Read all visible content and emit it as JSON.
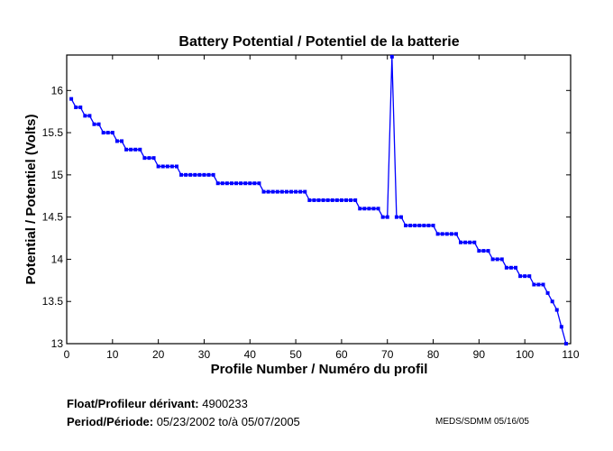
{
  "chart_data": {
    "type": "line",
    "title": "Battery Potential / Potentiel de la batterie",
    "xlabel": "Profile Number / Numéro du profil",
    "ylabel": "Potential / Potentiel (Volts)",
    "xlim": [
      0,
      110
    ],
    "ylim": [
      13,
      16.42
    ],
    "xticks": [
      0,
      10,
      20,
      30,
      40,
      50,
      60,
      70,
      80,
      90,
      100,
      110
    ],
    "yticks": [
      13,
      13.5,
      14,
      14.5,
      15,
      15.5,
      16
    ],
    "xtick_labels": [
      "0",
      "10",
      "20",
      "30",
      "40",
      "50",
      "60",
      "70",
      "80",
      "90",
      "100",
      "110"
    ],
    "ytick_labels": [
      "13",
      "13.5",
      "14",
      "14.5",
      "15",
      "15.5",
      "16"
    ],
    "grid": false,
    "color": "#0000ff",
    "series": [
      {
        "name": "Battery Potential",
        "x": [
          1,
          2,
          3,
          4,
          5,
          6,
          7,
          8,
          9,
          10,
          11,
          12,
          13,
          14,
          15,
          16,
          17,
          18,
          19,
          20,
          21,
          22,
          23,
          24,
          25,
          26,
          27,
          28,
          29,
          30,
          31,
          32,
          33,
          34,
          35,
          36,
          37,
          38,
          39,
          40,
          41,
          42,
          43,
          44,
          45,
          46,
          47,
          48,
          49,
          50,
          51,
          52,
          53,
          54,
          55,
          56,
          57,
          58,
          59,
          60,
          61,
          62,
          63,
          64,
          65,
          66,
          67,
          68,
          69,
          70,
          71,
          72,
          73,
          74,
          75,
          76,
          77,
          78,
          79,
          80,
          81,
          82,
          83,
          84,
          85,
          86,
          87,
          88,
          89,
          90,
          91,
          92,
          93,
          94,
          95,
          96,
          97,
          98,
          99,
          100,
          101,
          102,
          103,
          104,
          105,
          106,
          107,
          108,
          109
        ],
        "values": [
          15.9,
          15.8,
          15.8,
          15.7,
          15.7,
          15.6,
          15.6,
          15.5,
          15.5,
          15.5,
          15.4,
          15.4,
          15.3,
          15.3,
          15.3,
          15.3,
          15.2,
          15.2,
          15.2,
          15.1,
          15.1,
          15.1,
          15.1,
          15.1,
          15.0,
          15.0,
          15.0,
          15.0,
          15.0,
          15.0,
          15.0,
          15.0,
          14.9,
          14.9,
          14.9,
          14.9,
          14.9,
          14.9,
          14.9,
          14.9,
          14.9,
          14.9,
          14.8,
          14.8,
          14.8,
          14.8,
          14.8,
          14.8,
          14.8,
          14.8,
          14.8,
          14.8,
          14.7,
          14.7,
          14.7,
          14.7,
          14.7,
          14.7,
          14.7,
          14.7,
          14.7,
          14.7,
          14.7,
          14.6,
          14.6,
          14.6,
          14.6,
          14.6,
          14.5,
          14.5,
          16.4,
          14.5,
          14.5,
          14.4,
          14.4,
          14.4,
          14.4,
          14.4,
          14.4,
          14.4,
          14.3,
          14.3,
          14.3,
          14.3,
          14.3,
          14.2,
          14.2,
          14.2,
          14.2,
          14.1,
          14.1,
          14.1,
          14.0,
          14.0,
          14.0,
          13.9,
          13.9,
          13.9,
          13.8,
          13.8,
          13.8,
          13.7,
          13.7,
          13.7,
          13.6,
          13.5,
          13.4,
          13.2,
          13.0
        ]
      }
    ]
  },
  "footer": {
    "float_label": "Float/Profileur dérivant:",
    "float_value": "4900233",
    "period_label": "Period/Période:",
    "period_start": "05/23/2002",
    "period_sep": "to/à",
    "period_end": "05/07/2005",
    "credit": "MEDS/SDMM  05/16/05"
  }
}
